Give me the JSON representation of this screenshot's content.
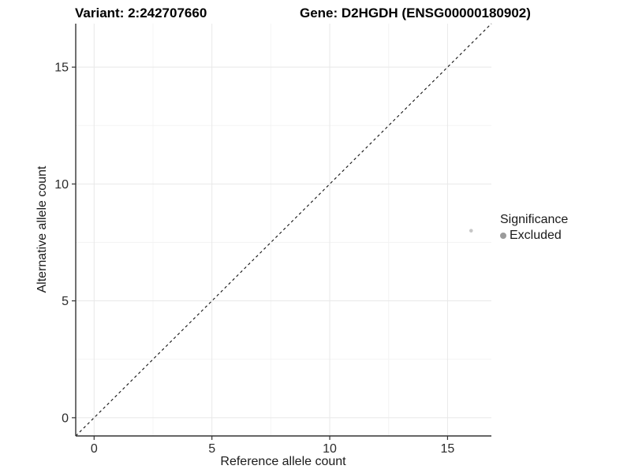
{
  "header": {
    "variant_title": "Variant: 2:242707660",
    "gene_title": "Gene: D2HGDH (ENSG00000180902)"
  },
  "legend": {
    "title": "Significance",
    "items": [
      {
        "label": "Excluded",
        "color": "#9b9b9b"
      }
    ]
  },
  "chart_data": {
    "type": "scatter",
    "xlabel": "Reference allele count",
    "ylabel": "Alternative allele count",
    "xlim": [
      -0.78,
      16.86
    ],
    "ylim": [
      -0.78,
      16.86
    ],
    "x_ticks": [
      0,
      5,
      10,
      15
    ],
    "x_tick_labels": [
      "0",
      "5",
      "10",
      "15"
    ],
    "y_ticks": [
      0,
      5,
      10,
      15
    ],
    "y_tick_labels": [
      "0",
      "5",
      "10",
      "15"
    ],
    "minor_ticks": [
      2.5,
      7.5,
      12.5
    ],
    "grid": "on",
    "legend_position": "right",
    "identity_line": {
      "style": "dashed",
      "from": [
        -0.78,
        -0.78
      ],
      "to": [
        16.86,
        16.86
      ],
      "color": "#111111"
    },
    "series": [
      {
        "name": "Excluded",
        "color": "#c6c6c6",
        "points": [
          {
            "x": 16,
            "y": 8
          }
        ]
      }
    ],
    "colors": {
      "axis": "#333333",
      "tick_label": "#2b2b2b",
      "grid_major": "#e8e8e8",
      "grid_minor": "#f4f4f4",
      "background": "#ffffff"
    }
  }
}
